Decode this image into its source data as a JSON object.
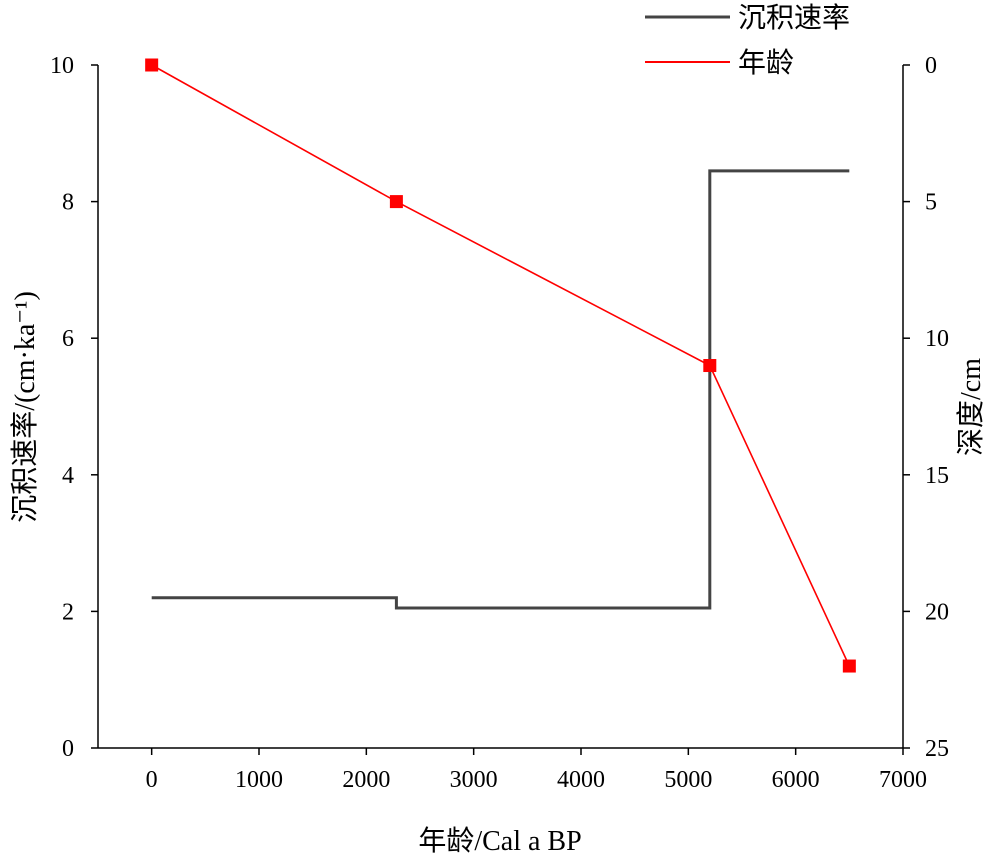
{
  "chart_data": {
    "type": "line",
    "x_axis": {
      "label": "年龄/Cal a BP",
      "range": [
        -500,
        7000
      ],
      "ticks": [
        0,
        1000,
        2000,
        3000,
        4000,
        5000,
        6000,
        7000
      ]
    },
    "y_axis_left": {
      "label": "沉积速率/(cm·ka⁻¹)",
      "range": [
        0,
        10
      ],
      "ticks": [
        0,
        2,
        4,
        6,
        8,
        10
      ]
    },
    "y_axis_right": {
      "label": "深度/cm",
      "range": [
        0,
        25
      ],
      "inverted": true,
      "ticks": [
        0,
        5,
        10,
        15,
        20,
        25
      ]
    },
    "legend_position": "top-right",
    "series": [
      {
        "name": "沉积速率",
        "axis": "left",
        "style": "step",
        "color": "#444444",
        "x": [
          0,
          2280,
          2280,
          5200,
          5200,
          6500
        ],
        "y": [
          2.2,
          2.2,
          2.05,
          2.05,
          8.45,
          8.45
        ]
      },
      {
        "name": "年龄",
        "axis": "right",
        "style": "line-with-square-markers",
        "color": "#ff0000",
        "x": [
          0,
          2280,
          5200,
          6500
        ],
        "y": [
          0,
          5,
          11,
          22
        ]
      }
    ]
  }
}
